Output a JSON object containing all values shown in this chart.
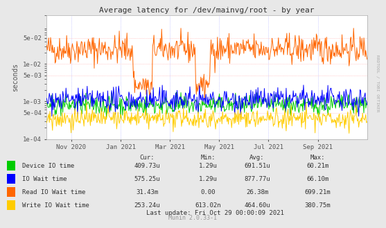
{
  "title": "Average latency for /dev/mainvg/root - by year",
  "ylabel": "seconds",
  "right_label": "RRDTOOL / TOBI OETIKER",
  "bg_color": "#e8e8e8",
  "plot_bg_color": "#ffffff",
  "x_tick_labels": [
    "Nov 2020",
    "Jan 2021",
    "Mar 2021",
    "May 2021",
    "Jul 2021",
    "Sep 2021"
  ],
  "y_ticks": [
    0.0001,
    0.0005,
    0.001,
    0.005,
    0.01,
    0.05
  ],
  "y_tick_labels": [
    "1e-04",
    "5e-04",
    "1e-03",
    "5e-03",
    "1e-02",
    "5e-02"
  ],
  "legend_entries": [
    {
      "label": "Device IO time",
      "color": "#00cc00"
    },
    {
      "label": "IO Wait time",
      "color": "#0000ff"
    },
    {
      "label": "Read IO Wait time",
      "color": "#ff6600"
    },
    {
      "label": "Write IO Wait time",
      "color": "#ffcc00"
    }
  ],
  "legend_cols": {
    "Cur:": [
      "409.73u",
      "575.25u",
      "31.43m",
      "253.24u"
    ],
    "Min:": [
      "1.29u",
      "1.29u",
      "0.00",
      "613.02n"
    ],
    "Avg:": [
      "691.51u",
      "877.77u",
      "26.38m",
      "464.60u"
    ],
    "Max:": [
      "60.21m",
      "66.10m",
      "699.21m",
      "380.75m"
    ]
  },
  "footer": "Last update: Fri Oct 29 00:00:09 2021",
  "munin_version": "Munin 2.0.33-1",
  "seed": 42
}
